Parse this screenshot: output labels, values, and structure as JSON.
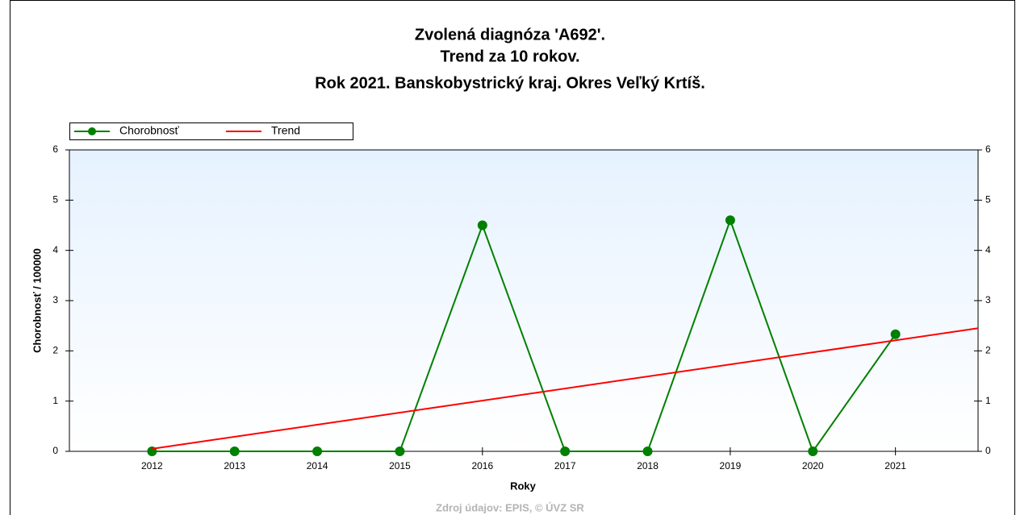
{
  "chart_data": {
    "type": "line",
    "title": [
      "Zvolená diagnóza 'A692'.",
      "Trend za 10 rokov.",
      "Rok 2021. Banskobystrický kraj. Okres Veľký Krtíš."
    ],
    "x": [
      2012,
      2013,
      2014,
      2015,
      2016,
      2017,
      2018,
      2019,
      2020,
      2021
    ],
    "series": [
      {
        "name": "Chorobnosť",
        "color": "#008000",
        "values": [
          0,
          0,
          0,
          0,
          4.5,
          0,
          0,
          4.6,
          0,
          2.33
        ]
      },
      {
        "name": "Trend",
        "color": "#ff0000",
        "x": [
          2012,
          2022
        ],
        "values": [
          0.05,
          2.45
        ]
      }
    ],
    "xlim": [
      2011,
      2022
    ],
    "xticks": [
      2012,
      2013,
      2014,
      2015,
      2016,
      2017,
      2018,
      2019,
      2020,
      2021
    ],
    "ylim": [
      0,
      6
    ],
    "yticks": [
      0,
      1,
      2,
      3,
      4,
      5,
      6
    ],
    "y2lim": [
      0,
      6
    ],
    "y2ticks": [
      0,
      1,
      2,
      3,
      4,
      5,
      6
    ],
    "xlabel": "Roky",
    "ylabel": "Chorobnosť / 100000",
    "source": "Zdroj údajov: EPIS, © ÚVZ SR",
    "legend": "top-left"
  }
}
